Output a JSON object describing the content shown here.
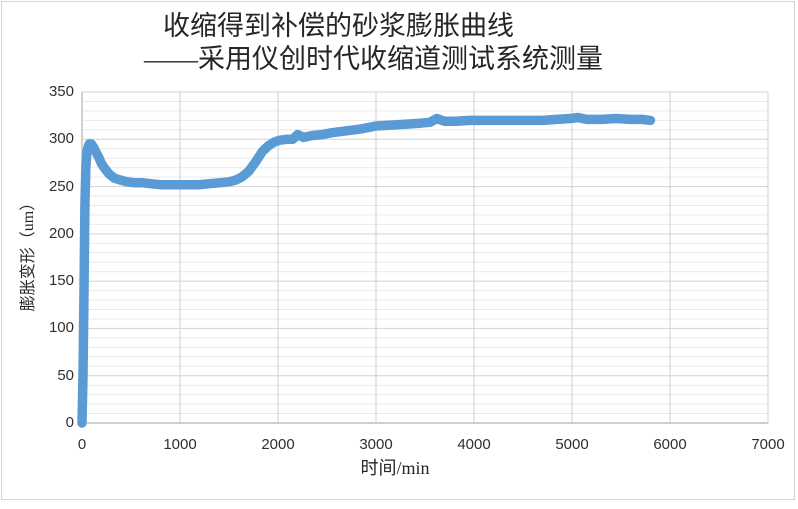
{
  "title": {
    "line1": "收缩得到补偿的砂浆膨胀曲线",
    "line2": "——采用仪创时代收缩道测试系统测量"
  },
  "axes": {
    "x_title": "时间/min",
    "y_title": "膨胀变形（um）"
  },
  "colors": {
    "series": "#5B9BD5",
    "grid_major": "#d2d2d2",
    "grid_minor": "#e9e9e9",
    "axis_line": "#b3b3b3",
    "frame_border": "#d4d4d4",
    "title_text": "#262626",
    "tick_text": "#303030"
  },
  "chart_data": {
    "type": "scatter",
    "title": "收缩得到补偿的砂浆膨胀曲线",
    "subtitle": "——采用仪创时代收缩道测试系统测量",
    "xlabel": "时间/min",
    "ylabel": "膨胀变形（um）",
    "xlim": [
      0,
      7000
    ],
    "ylim": [
      0,
      350
    ],
    "x_ticks": [
      0,
      1000,
      2000,
      3000,
      4000,
      5000,
      6000,
      7000
    ],
    "y_ticks": [
      0,
      50,
      100,
      150,
      200,
      250,
      300,
      350
    ],
    "y_minor_step": 10,
    "grid": "horizontal major+minor, vertical major, no legend",
    "marker": "dense round markers forming thick band",
    "series_color": "#5B9BD5",
    "points": [
      [
        0,
        0
      ],
      [
        10,
        50
      ],
      [
        20,
        140
      ],
      [
        30,
        230
      ],
      [
        40,
        272
      ],
      [
        50,
        286
      ],
      [
        62,
        292
      ],
      [
        75,
        295
      ],
      [
        95,
        295
      ],
      [
        115,
        292
      ],
      [
        140,
        287
      ],
      [
        170,
        281
      ],
      [
        200,
        274
      ],
      [
        240,
        268
      ],
      [
        280,
        263
      ],
      [
        330,
        259
      ],
      [
        390,
        257
      ],
      [
        460,
        255
      ],
      [
        540,
        254
      ],
      [
        620,
        254
      ],
      [
        700,
        253
      ],
      [
        800,
        252
      ],
      [
        900,
        252
      ],
      [
        1000,
        252
      ],
      [
        1100,
        252
      ],
      [
        1200,
        252
      ],
      [
        1300,
        253
      ],
      [
        1400,
        254
      ],
      [
        1500,
        255
      ],
      [
        1570,
        257
      ],
      [
        1630,
        260
      ],
      [
        1700,
        266
      ],
      [
        1770,
        276
      ],
      [
        1840,
        287
      ],
      [
        1900,
        293
      ],
      [
        1960,
        297
      ],
      [
        2020,
        299
      ],
      [
        2090,
        300
      ],
      [
        2150,
        300
      ],
      [
        2200,
        305
      ],
      [
        2260,
        302
      ],
      [
        2350,
        304
      ],
      [
        2450,
        305
      ],
      [
        2550,
        307
      ],
      [
        2700,
        309
      ],
      [
        2850,
        311
      ],
      [
        3000,
        314
      ],
      [
        3150,
        315
      ],
      [
        3300,
        316
      ],
      [
        3450,
        317
      ],
      [
        3550,
        318
      ],
      [
        3620,
        322
      ],
      [
        3700,
        319
      ],
      [
        3820,
        319
      ],
      [
        3950,
        320
      ],
      [
        4100,
        320
      ],
      [
        4250,
        320
      ],
      [
        4400,
        320
      ],
      [
        4550,
        320
      ],
      [
        4700,
        320
      ],
      [
        4850,
        321
      ],
      [
        4980,
        322
      ],
      [
        5060,
        323
      ],
      [
        5150,
        321
      ],
      [
        5300,
        321
      ],
      [
        5450,
        322
      ],
      [
        5600,
        321
      ],
      [
        5720,
        321
      ],
      [
        5800,
        320
      ]
    ]
  }
}
